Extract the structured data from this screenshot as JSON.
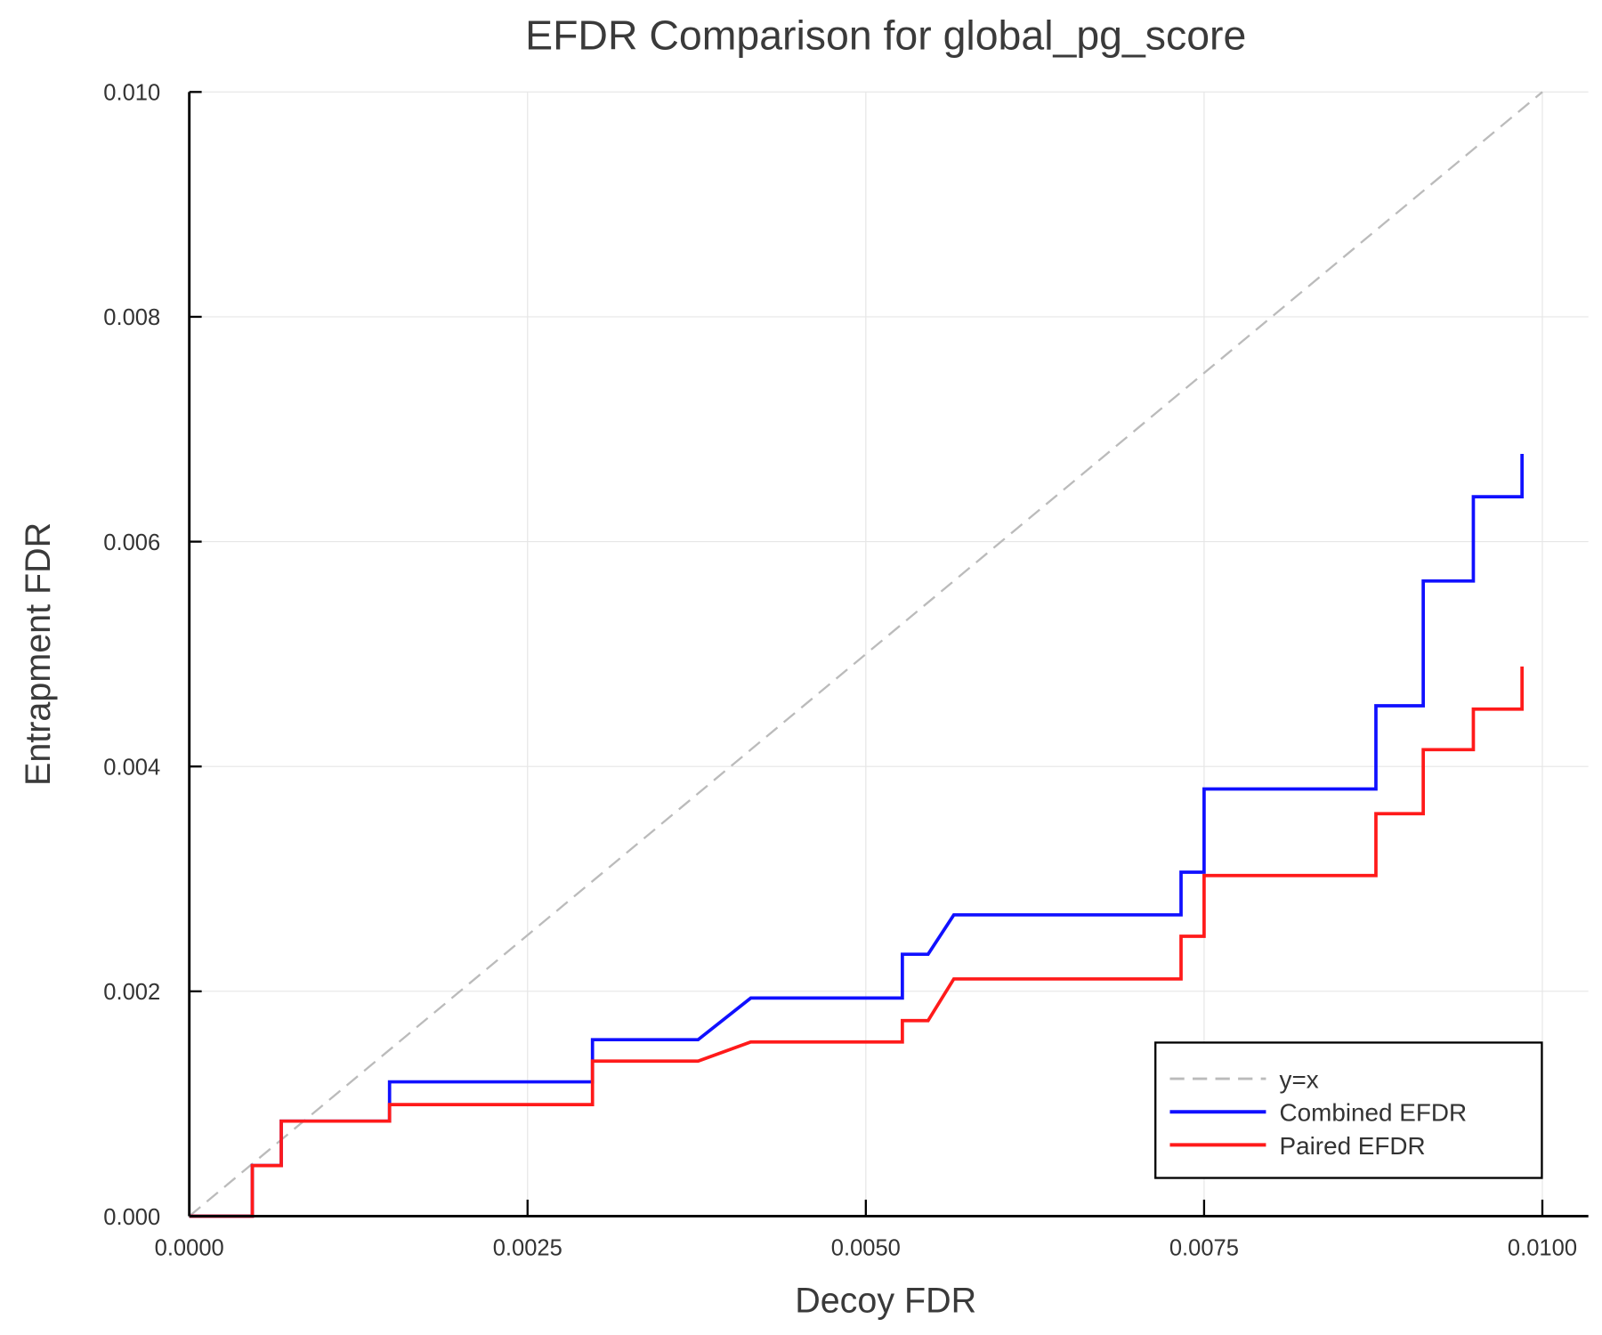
{
  "chart_data": {
    "type": "line",
    "title": "EFDR Comparison for global_pg_score",
    "xlabel": "Decoy FDR",
    "ylabel": "Entrapment FDR",
    "xlim": [
      0,
      0.01034
    ],
    "ylim": [
      0,
      0.01
    ],
    "xticks": [
      "0.0000",
      "0.0025",
      "0.0050",
      "0.0075",
      "0.0100"
    ],
    "xtick_values": [
      0,
      0.0025,
      0.005,
      0.0075,
      0.01
    ],
    "yticks": [
      "0.000",
      "0.002",
      "0.004",
      "0.006",
      "0.008",
      "0.010"
    ],
    "ytick_values": [
      0,
      0.002,
      0.004,
      0.006,
      0.008,
      0.01
    ],
    "grid": true,
    "legend_position": "bottom-right",
    "series": [
      {
        "name": "y=x",
        "color": "#bbbbbb",
        "style": "dashed",
        "x": [
          0,
          0.01
        ],
        "y": [
          0,
          0.01
        ]
      },
      {
        "name": "Combined EFDR",
        "color": "#1010ff",
        "style": "solid",
        "x": [
          0,
          0.000466,
          0.000466,
          0.00068,
          0.00068,
          0.00148,
          0.00148,
          0.00298,
          0.00298,
          0.00376,
          0.00415,
          0.00527,
          0.00527,
          0.00546,
          0.00565,
          0.00733,
          0.00733,
          0.0075,
          0.0075,
          0.00877,
          0.00877,
          0.00912,
          0.00912,
          0.00949,
          0.00949,
          0.00985,
          0.00985
        ],
        "y": [
          0,
          0,
          0.00045,
          0.00045,
          0.000846,
          0.000846,
          0.001195,
          0.001195,
          0.00157,
          0.00157,
          0.00194,
          0.00194,
          0.00233,
          0.00233,
          0.00268,
          0.00268,
          0.00306,
          0.00306,
          0.0038,
          0.0038,
          0.00454,
          0.00454,
          0.00565,
          0.00565,
          0.0064,
          0.0064,
          0.00678
        ]
      },
      {
        "name": "Paired EFDR",
        "color": "#ff1a1a",
        "style": "solid",
        "x": [
          0,
          0.000466,
          0.000466,
          0.00068,
          0.00068,
          0.00148,
          0.00148,
          0.00298,
          0.00298,
          0.00376,
          0.00415,
          0.00527,
          0.00527,
          0.00546,
          0.00565,
          0.00733,
          0.00733,
          0.0075,
          0.0075,
          0.00877,
          0.00877,
          0.00912,
          0.00912,
          0.00949,
          0.00949,
          0.00985,
          0.00985
        ],
        "y": [
          0,
          0,
          0.00045,
          0.00045,
          0.000846,
          0.000846,
          0.000993,
          0.000993,
          0.00138,
          0.00138,
          0.00155,
          0.00155,
          0.00174,
          0.00174,
          0.00211,
          0.00211,
          0.00249,
          0.00249,
          0.00303,
          0.00303,
          0.00358,
          0.00358,
          0.00415,
          0.00415,
          0.00451,
          0.00451,
          0.00489
        ]
      }
    ]
  }
}
